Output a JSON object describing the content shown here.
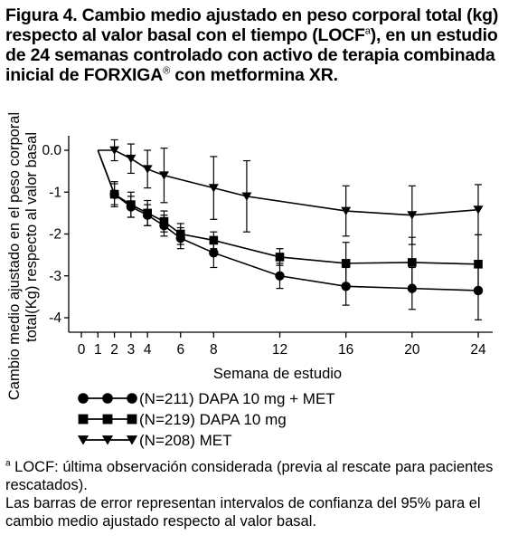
{
  "title": {
    "part1": "Figura 4. Cambio medio ajustado en peso corporal total (kg) respecto al valor basal con el tiempo (LOCF",
    "sup": "a",
    "part2": "), en un estudio de 24 semanas controlado con activo de terapia combinada inicial de FORXIGA",
    "reg": "®",
    "part3": " con metformina XR."
  },
  "chart_data": {
    "type": "line",
    "xlabel": "Semana de estudio",
    "ylabel_line1": "Cambio medio ajustado en el peso corporal",
    "ylabel_line2": "total(Kg) respecto al valor basal",
    "x_ticks": [
      0,
      1,
      2,
      3,
      4,
      6,
      8,
      12,
      16,
      20,
      24
    ],
    "y_ticks": [
      0,
      -1,
      -2,
      -3,
      -4
    ],
    "y_tick_labels": [
      "0.0",
      "-1",
      "-2",
      "-3",
      "-4"
    ],
    "xlim": [
      0,
      24
    ],
    "ylim": [
      -4.3,
      0.3
    ],
    "series": [
      {
        "name": "(N=211) DAPA 10 mg + MET",
        "marker": "circle",
        "x": [
          1,
          2,
          3,
          4,
          5,
          6,
          8,
          12,
          16,
          20,
          24
        ],
        "y": [
          0.0,
          -1.05,
          -1.35,
          -1.55,
          -1.8,
          -2.1,
          -2.45,
          -3.0,
          -3.25,
          -3.3,
          -3.35
        ],
        "ci": [
          0.25,
          0.3,
          0.25,
          0.25,
          0.25,
          0.25,
          0.35,
          0.3,
          0.45,
          0.5,
          0.7
        ],
        "error_bars": true
      },
      {
        "name": "(N=219) DAPA 10 mg",
        "marker": "square",
        "x": [
          1,
          2,
          3,
          4,
          5,
          6,
          8,
          12,
          16,
          20,
          24
        ],
        "y": [
          0.0,
          -1.05,
          -1.3,
          -1.5,
          -1.7,
          -2.0,
          -2.15,
          -2.55,
          -2.7,
          -2.68,
          -2.72
        ],
        "ci": [
          0.25,
          0.25,
          0.3,
          0.3,
          0.25,
          0.25,
          0.2,
          0.2,
          0.5,
          0.6,
          0.7
        ],
        "error_bars": true
      },
      {
        "name": "(N=208) MET",
        "marker": "triangle-down",
        "x": [
          1,
          2,
          3,
          4,
          5,
          8,
          10,
          16,
          20,
          24
        ],
        "y": [
          0.0,
          0.0,
          -0.2,
          -0.45,
          -0.6,
          -0.9,
          -1.1,
          -1.45,
          -1.55,
          -1.42
        ],
        "ci": [
          0.25,
          0.25,
          0.35,
          0.45,
          0.65,
          0.75,
          0.85,
          0.6,
          0.7,
          0.6
        ],
        "error_bars": true
      }
    ],
    "grid": false,
    "legend_placement": "bottom-left"
  },
  "footnotes": {
    "line1_sup": "a",
    "line1": " LOCF: última observación considerada (previa al rescate para pacientes rescatados).",
    "line2": "Las barras de error representan intervalos de confianza del 95% para el cambio medio ajustado respecto al valor basal."
  }
}
